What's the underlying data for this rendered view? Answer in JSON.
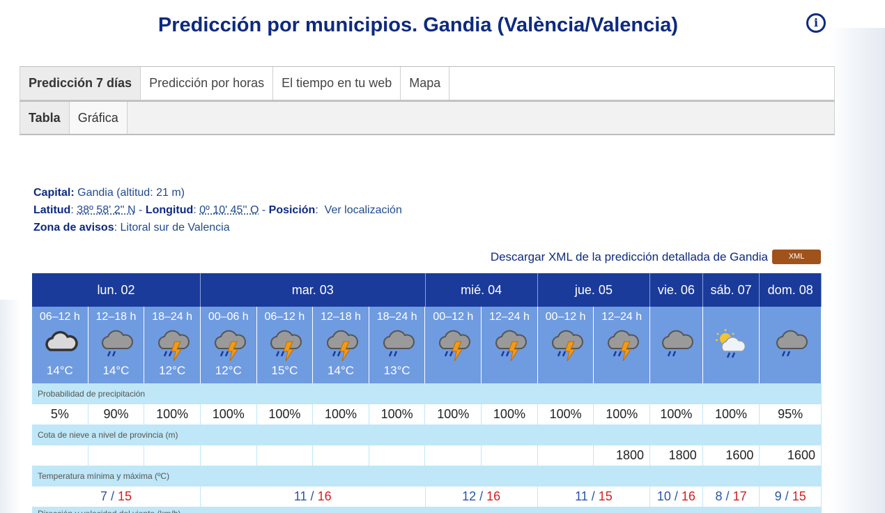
{
  "title": "Predicción por municipios. Gandia (València/Valencia)",
  "tabs_main": [
    "Predicción 7 días",
    "Predicción por horas",
    "El tiempo en tu web",
    "Mapa"
  ],
  "tabs_sub": [
    "Tabla",
    "Gráfica"
  ],
  "meta": {
    "capital_label": "Capital:",
    "capital_value": "Gandia (altitud: 21 m)",
    "lat_label": "Latitud",
    "lat_value": "38º 58' 2'' N",
    "lon_label": "Longitud",
    "lon_value": "0º 10' 45'' O",
    "pos_label": "Posición",
    "pos_value": "Ver localización",
    "zona_label": "Zona de avisos",
    "zona_value": "Litoral sur de Valencia"
  },
  "xml_link": "Descargar XML de la predicción detallada de Gandia",
  "xml_badge": "XML",
  "days": [
    {
      "label": "lun. 02",
      "span": 3
    },
    {
      "label": "mar. 03",
      "span": 4
    },
    {
      "label": "mié. 04",
      "span": 2
    },
    {
      "label": "jue. 05",
      "span": 2
    },
    {
      "label": "vie. 06",
      "span": 1
    },
    {
      "label": "sáb. 07",
      "span": 1
    },
    {
      "label": "dom. 08",
      "span": 1
    }
  ],
  "periods": [
    {
      "period": "06–12 h",
      "icon": "cloudy-icon",
      "temp": "14°C"
    },
    {
      "period": "12–18 h",
      "icon": "rain-cloud-icon",
      "temp": "14°C"
    },
    {
      "period": "18–24 h",
      "icon": "thunderstorm-icon",
      "temp": "12°C"
    },
    {
      "period": "00–06 h",
      "icon": "thunderstorm-icon",
      "temp": "12°C"
    },
    {
      "period": "06–12 h",
      "icon": "thunderstorm-icon",
      "temp": "15°C"
    },
    {
      "period": "12–18 h",
      "icon": "thunderstorm-icon",
      "temp": "14°C"
    },
    {
      "period": "18–24 h",
      "icon": "rain-cloud-icon",
      "temp": "13°C"
    },
    {
      "period": "00–12 h",
      "icon": "thunderstorm-icon",
      "temp": ""
    },
    {
      "period": "12–24 h",
      "icon": "thunderstorm-icon",
      "temp": ""
    },
    {
      "period": "00–12 h",
      "icon": "thunderstorm-icon",
      "temp": ""
    },
    {
      "period": "12–24 h",
      "icon": "thunderstorm-icon",
      "temp": ""
    },
    {
      "period": "",
      "icon": "rain-cloud-icon",
      "temp": ""
    },
    {
      "period": "",
      "icon": "sun-rain-icon",
      "temp": ""
    },
    {
      "period": "",
      "icon": "rain-cloud-icon",
      "temp": ""
    }
  ],
  "precip_label": "Probabilidad de precipitación",
  "precip": [
    "5%",
    "90%",
    "100%",
    "100%",
    "100%",
    "100%",
    "100%",
    "100%",
    "100%",
    "100%",
    "100%",
    "100%",
    "100%",
    "95%"
  ],
  "snow_label": "Cota de nieve a nivel de provincia (m)",
  "snow": [
    "",
    "",
    "",
    "",
    "",
    "",
    "",
    "",
    "",
    "",
    "1800",
    "1800",
    "1600",
    "1600"
  ],
  "temp_label": "Temperatura mínima y máxima (ºC)",
  "temps": [
    {
      "min": "7",
      "max": "15"
    },
    {
      "min": "11",
      "max": "16"
    },
    {
      "min": "12",
      "max": "16"
    },
    {
      "min": "11",
      "max": "15"
    },
    {
      "min": "10",
      "max": "16"
    },
    {
      "min": "8",
      "max": "17"
    },
    {
      "min": "9",
      "max": "15"
    }
  ],
  "cut_label": "Dirección y velocidad del viento (km/h)",
  "colors": {
    "title": "#0d2a80",
    "day_header": "#1a3b9a",
    "period_bg": "#6f9be0",
    "label_bg": "#bfe7f7",
    "max_temp": "#d42020",
    "min_temp": "#2a55a8",
    "xml_badge": "#a0521a"
  }
}
